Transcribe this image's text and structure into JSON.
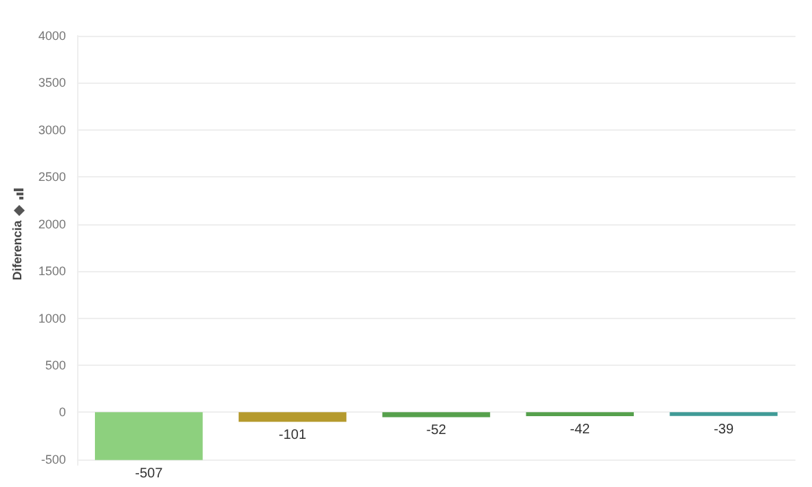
{
  "chart_data": {
    "type": "bar",
    "ylabel": "Diferencia",
    "categories": [
      null,
      null,
      null,
      null,
      null
    ],
    "values": [
      -507,
      -101,
      -52,
      -42,
      -39
    ],
    "colors": [
      "#8dd07e",
      "#b59a2e",
      "#56a04c",
      "#56a04c",
      "#3f9a96"
    ],
    "ylim": [
      -560,
      4000
    ],
    "yticks": [
      -500,
      0,
      500,
      1000,
      1500,
      2000,
      2500,
      3000,
      3500,
      4000
    ],
    "grid": "y",
    "data_labels": true
  }
}
